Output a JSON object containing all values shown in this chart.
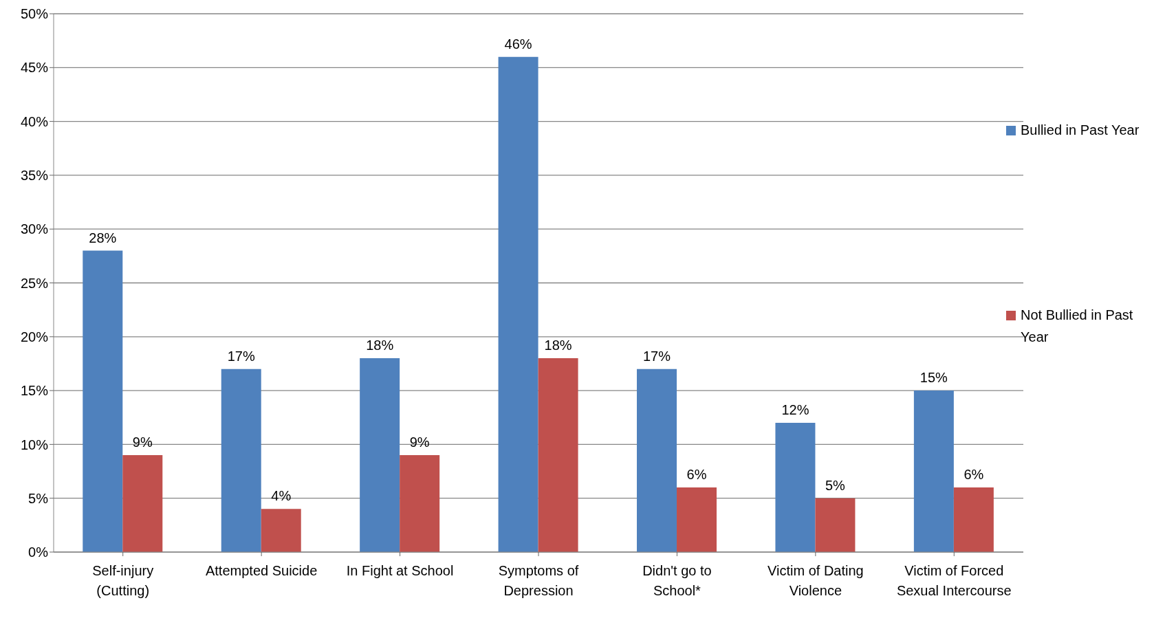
{
  "chart_data": {
    "type": "bar",
    "categories": [
      "Self-injury (Cutting)",
      "Attempted Suicide",
      "In Fight at School",
      "Symptoms of Depression",
      "Didn't go to School*",
      "Victim of Dating Violence",
      "Victim of Forced Sexual Intercourse"
    ],
    "series": [
      {
        "name": "Bullied in Past Year",
        "color": "#4f81bd",
        "values": [
          28,
          17,
          18,
          46,
          17,
          12,
          15
        ],
        "value_labels": [
          "28%",
          "17%",
          "18%",
          "46%",
          "17%",
          "12%",
          "15%"
        ]
      },
      {
        "name": "Not Bullied in Past Year",
        "color": "#c0504d",
        "values": [
          9,
          4,
          9,
          18,
          6,
          5,
          6
        ],
        "value_labels": [
          "9%",
          "4%",
          "9%",
          "18%",
          "6%",
          "5%",
          "6%"
        ]
      }
    ],
    "ylim": [
      0,
      50
    ],
    "yticks": [
      {
        "value": 0,
        "label": "0%"
      },
      {
        "value": 5,
        "label": "5%"
      },
      {
        "value": 10,
        "label": "10%"
      },
      {
        "value": 15,
        "label": "15%"
      },
      {
        "value": 20,
        "label": "20%"
      },
      {
        "value": 25,
        "label": "25%"
      },
      {
        "value": 30,
        "label": "30%"
      },
      {
        "value": 35,
        "label": "35%"
      },
      {
        "value": 40,
        "label": "40%"
      },
      {
        "value": 45,
        "label": "45%"
      },
      {
        "value": 50,
        "label": "50%"
      }
    ],
    "grid": "y",
    "legend": "right"
  }
}
